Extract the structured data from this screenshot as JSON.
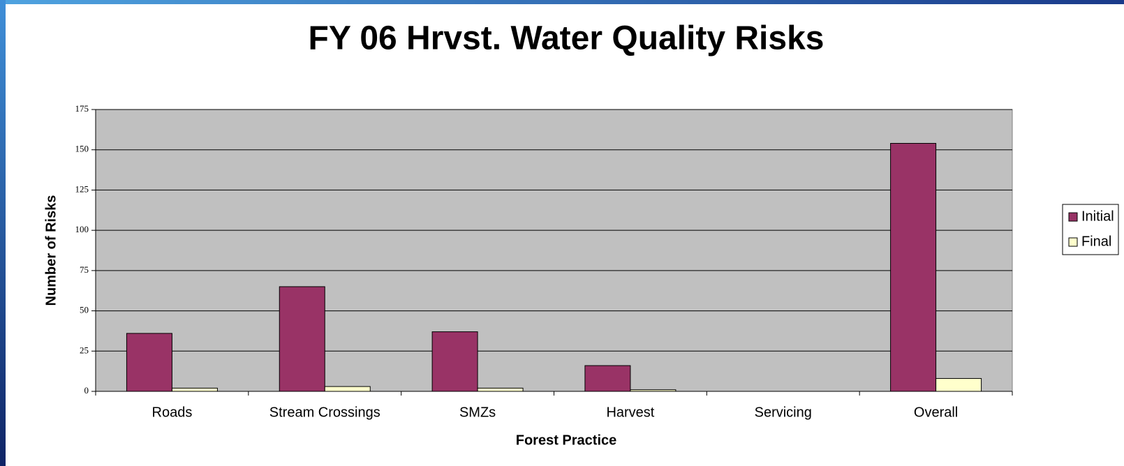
{
  "chart_data": {
    "type": "bar",
    "title": "FY 06 Hrvst. Water Quality Risks",
    "x_label": "Forest Practice",
    "y_label": "Number of Risks",
    "categories": [
      "Roads",
      "Stream Crossings",
      "SMZs",
      "Harvest",
      "Servicing",
      "Overall"
    ],
    "series": [
      {
        "name": "Initial",
        "color": "#993366",
        "values": [
          36,
          65,
          37,
          16,
          0,
          154
        ]
      },
      {
        "name": "Final",
        "color": "#ffffcc",
        "values": [
          2,
          3,
          2,
          1,
          0,
          8
        ]
      }
    ],
    "ylim": [
      0,
      175
    ],
    "yticks": [
      0,
      25,
      50,
      75,
      100,
      125,
      150,
      175
    ],
    "grid": true,
    "legend": "right"
  }
}
